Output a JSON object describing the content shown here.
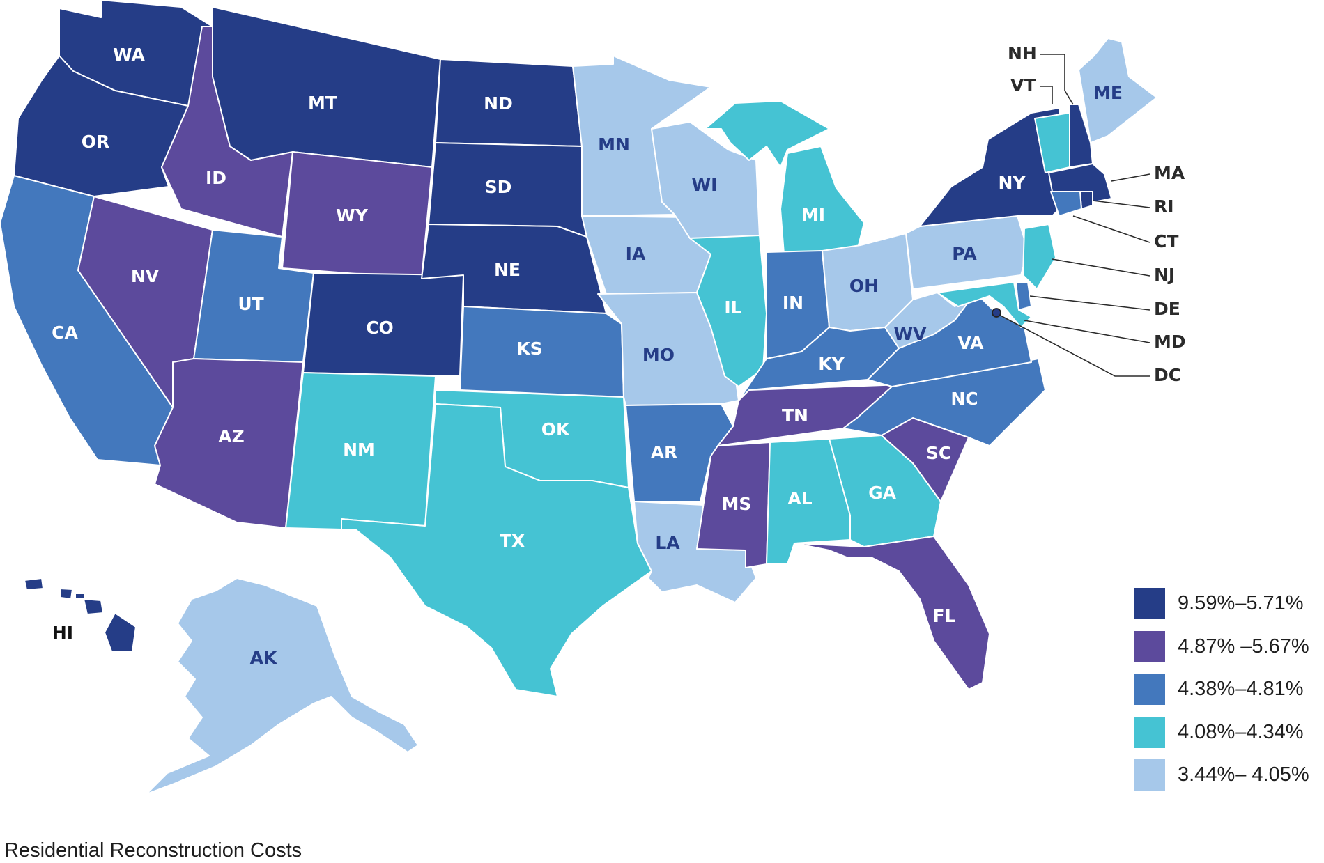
{
  "caption": "Residential Reconstruction Costs",
  "colors": {
    "c1": "#253d87",
    "c2": "#5c4a9c",
    "c3": "#4378bd",
    "c4": "#45c3d3",
    "c5": "#a6c8ea",
    "label_light": "#ffffff",
    "label_dark": "#253d87"
  },
  "legend": [
    {
      "label": "9.59%–5.71%",
      "color_key": "c1"
    },
    {
      "label": "4.87% –5.67%",
      "color_key": "c2"
    },
    {
      "label": "4.38%–4.81%",
      "color_key": "c3"
    },
    {
      "label": "4.08%–4.34%",
      "color_key": "c4"
    },
    {
      "label": "3.44%– 4.05%",
      "color_key": "c5"
    }
  ],
  "states": [
    {
      "code": "WA",
      "cls": "c1"
    },
    {
      "code": "OR",
      "cls": "c1"
    },
    {
      "code": "CA",
      "cls": "c3"
    },
    {
      "code": "ID",
      "cls": "c2"
    },
    {
      "code": "NV",
      "cls": "c2"
    },
    {
      "code": "MT",
      "cls": "c1"
    },
    {
      "code": "WY",
      "cls": "c2"
    },
    {
      "code": "UT",
      "cls": "c3"
    },
    {
      "code": "AZ",
      "cls": "c2"
    },
    {
      "code": "CO",
      "cls": "c1"
    },
    {
      "code": "NM",
      "cls": "c4"
    },
    {
      "code": "ND",
      "cls": "c1"
    },
    {
      "code": "SD",
      "cls": "c1"
    },
    {
      "code": "NE",
      "cls": "c1"
    },
    {
      "code": "KS",
      "cls": "c3"
    },
    {
      "code": "OK",
      "cls": "c4"
    },
    {
      "code": "TX",
      "cls": "c4"
    },
    {
      "code": "MN",
      "cls": "c5"
    },
    {
      "code": "IA",
      "cls": "c5"
    },
    {
      "code": "MO",
      "cls": "c5"
    },
    {
      "code": "AR",
      "cls": "c3"
    },
    {
      "code": "LA",
      "cls": "c5"
    },
    {
      "code": "WI",
      "cls": "c5"
    },
    {
      "code": "IL",
      "cls": "c4"
    },
    {
      "code": "MI",
      "cls": "c4"
    },
    {
      "code": "IN",
      "cls": "c3"
    },
    {
      "code": "OH",
      "cls": "c5"
    },
    {
      "code": "KY",
      "cls": "c3"
    },
    {
      "code": "TN",
      "cls": "c2"
    },
    {
      "code": "MS",
      "cls": "c2"
    },
    {
      "code": "AL",
      "cls": "c4"
    },
    {
      "code": "GA",
      "cls": "c4"
    },
    {
      "code": "FL",
      "cls": "c2"
    },
    {
      "code": "SC",
      "cls": "c2"
    },
    {
      "code": "NC",
      "cls": "c3"
    },
    {
      "code": "VA",
      "cls": "c3"
    },
    {
      "code": "WV",
      "cls": "c5"
    },
    {
      "code": "PA",
      "cls": "c5"
    },
    {
      "code": "NY",
      "cls": "c1"
    },
    {
      "code": "ME",
      "cls": "c5"
    },
    {
      "code": "NH",
      "cls": "c1"
    },
    {
      "code": "VT",
      "cls": "c4"
    },
    {
      "code": "MA",
      "cls": "c1"
    },
    {
      "code": "RI",
      "cls": "c1"
    },
    {
      "code": "CT",
      "cls": "c3"
    },
    {
      "code": "NJ",
      "cls": "c4"
    },
    {
      "code": "DE",
      "cls": "c3"
    },
    {
      "code": "MD",
      "cls": "c4"
    },
    {
      "code": "DC",
      "cls": "c1"
    },
    {
      "code": "AK",
      "cls": "c5"
    },
    {
      "code": "HI",
      "cls": "c1"
    }
  ]
}
